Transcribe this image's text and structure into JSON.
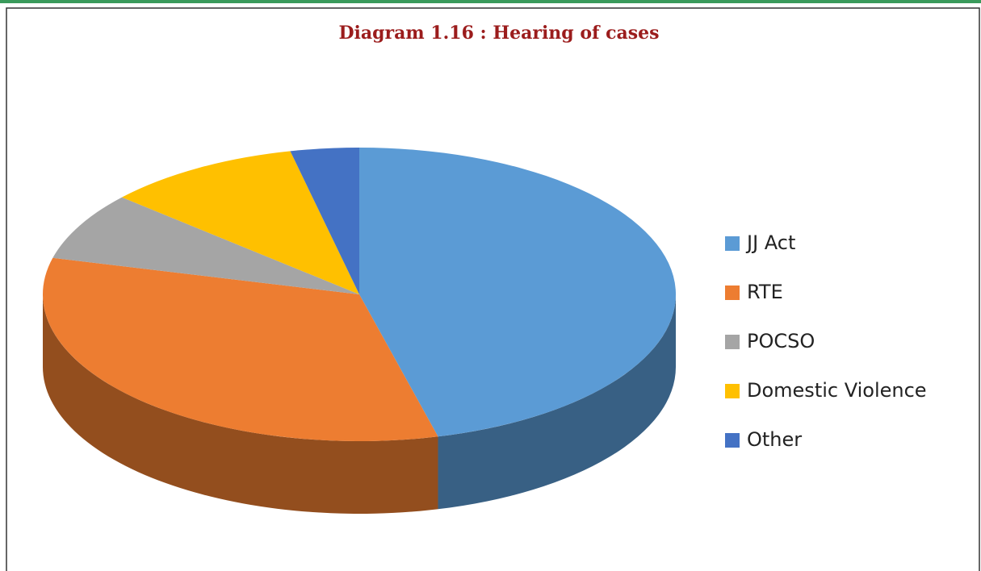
{
  "chart_data": {
    "type": "pie",
    "title": "Diagram 1.16 : Hearing of cases",
    "categories": [
      "JJ Act",
      "RTE",
      "POCSO",
      "Domestic Violence",
      "Other"
    ],
    "values": [
      46,
      33,
      7.5,
      10,
      3.5
    ],
    "colors": [
      "#5b9bd5",
      "#ed7d31",
      "#a5a5a5",
      "#ffc000",
      "#4472c4"
    ],
    "legend": "right"
  }
}
